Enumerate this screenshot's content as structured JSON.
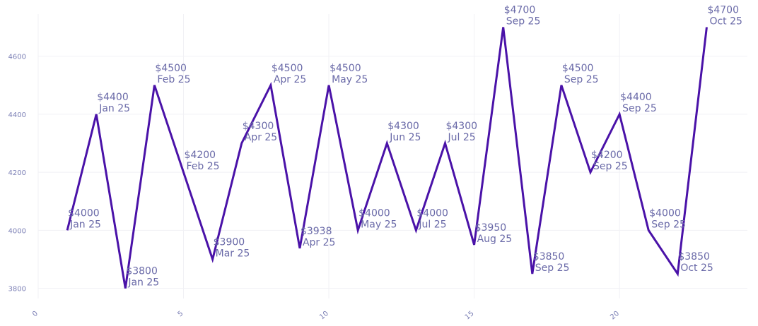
{
  "chart_data": {
    "type": "line",
    "title": "",
    "xlabel": "",
    "ylabel": "",
    "xlim": [
      0,
      24.4
    ],
    "ylim": [
      3765,
      4745
    ],
    "x_ticks": [
      0,
      5,
      10,
      15,
      20
    ],
    "y_ticks": [
      3800,
      4000,
      4200,
      4400,
      4600
    ],
    "grid": true,
    "line_color": "#4a12a8",
    "label_color": "#6a6aa8",
    "tick_color": "#7b7fb5",
    "series": [
      {
        "points": [
          {
            "x": 1,
            "y": 4000,
            "price": "$4000",
            "date": "Jan 25"
          },
          {
            "x": 2,
            "y": 4400,
            "price": "$4400",
            "date": "Jan 25"
          },
          {
            "x": 3,
            "y": 3800,
            "price": "$3800",
            "date": "Jan 25"
          },
          {
            "x": 4,
            "y": 4500,
            "price": "$4500",
            "date": "Feb 25"
          },
          {
            "x": 5,
            "y": 4200,
            "price": "$4200",
            "date": "Feb 25"
          },
          {
            "x": 6,
            "y": 3900,
            "price": "$3900",
            "date": "Mar 25"
          },
          {
            "x": 7,
            "y": 4300,
            "price": "$4300",
            "date": "Apr 25"
          },
          {
            "x": 8,
            "y": 4500,
            "price": "$4500",
            "date": "Apr 25"
          },
          {
            "x": 9,
            "y": 3938,
            "price": "$3938",
            "date": "Apr 25"
          },
          {
            "x": 10,
            "y": 4500,
            "price": "$4500",
            "date": "May 25"
          },
          {
            "x": 11,
            "y": 4000,
            "price": "$4000",
            "date": "May 25"
          },
          {
            "x": 12,
            "y": 4300,
            "price": "$4300",
            "date": "Jun 25"
          },
          {
            "x": 13,
            "y": 4000,
            "price": "$4000",
            "date": "Jul 25"
          },
          {
            "x": 14,
            "y": 4300,
            "price": "$4300",
            "date": "Jul 25"
          },
          {
            "x": 15,
            "y": 3950,
            "price": "$3950",
            "date": "Aug 25"
          },
          {
            "x": 16,
            "y": 4700,
            "price": "$4700",
            "date": "Sep 25"
          },
          {
            "x": 17,
            "y": 3850,
            "price": "$3850",
            "date": "Sep 25"
          },
          {
            "x": 18,
            "y": 4500,
            "price": "$4500",
            "date": "Sep 25"
          },
          {
            "x": 19,
            "y": 4200,
            "price": "$4200",
            "date": "Sep 25"
          },
          {
            "x": 20,
            "y": 4400,
            "price": "$4400",
            "date": "Sep 25"
          },
          {
            "x": 21,
            "y": 4000,
            "price": "$4000",
            "date": "Sep 25"
          },
          {
            "x": 22,
            "y": 3850,
            "price": "$3850",
            "date": "Oct 25"
          },
          {
            "x": 23,
            "y": 4700,
            "price": "$4700",
            "date": "Oct 25"
          }
        ]
      }
    ]
  }
}
